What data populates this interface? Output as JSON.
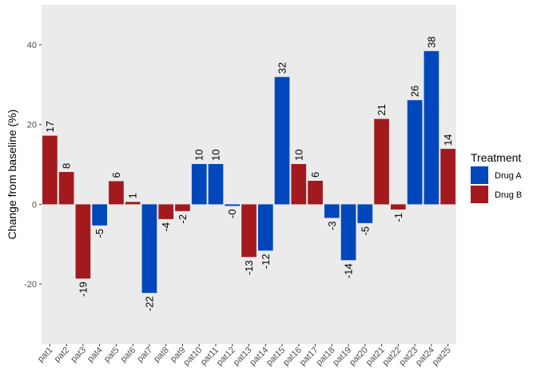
{
  "chart_data": {
    "type": "bar",
    "xlabel": "",
    "ylabel": "Change from baseline (%)",
    "ylim": [
      -35,
      50
    ],
    "yticks": [
      -20,
      0,
      20,
      40
    ],
    "categories": [
      "pat1",
      "pat2",
      "pat3",
      "pat4",
      "pat5",
      "pat6",
      "pat7",
      "pat8",
      "pat9",
      "pat10",
      "pat11",
      "pat12",
      "pat13",
      "pat14",
      "pat15",
      "pat16",
      "pat17",
      "pat18",
      "pat19",
      "pat20",
      "pat21",
      "pat22",
      "pat23",
      "pat24",
      "pat25"
    ],
    "values": [
      17.2,
      8.1,
      -18.6,
      -5.3,
      5.8,
      0.6,
      -22.2,
      -3.7,
      -1.7,
      10.1,
      10.1,
      -0.4,
      -13.2,
      -11.6,
      31.9,
      10.1,
      5.9,
      -3.4,
      -14.0,
      -4.7,
      21.4,
      -1.3,
      26.1,
      38.4,
      13.9
    ],
    "labels": [
      "17",
      "8",
      "-19",
      "-5",
      "6",
      "1",
      "-22",
      "-4",
      "-2",
      "10",
      "10",
      "-0",
      "-13",
      "-12",
      "32",
      "10",
      "6",
      "-3",
      "-14",
      "-5",
      "21",
      "-1",
      "26",
      "38",
      "14"
    ],
    "groups": [
      "Drug B",
      "Drug B",
      "Drug B",
      "Drug A",
      "Drug B",
      "Drug B",
      "Drug A",
      "Drug B",
      "Drug B",
      "Drug A",
      "Drug A",
      "Drug A",
      "Drug B",
      "Drug A",
      "Drug A",
      "Drug B",
      "Drug B",
      "Drug A",
      "Drug A",
      "Drug A",
      "Drug B",
      "Drug B",
      "Drug A",
      "Drug A",
      "Drug B"
    ],
    "legend": {
      "title": "Treatment",
      "position": "right",
      "entries": [
        {
          "name": "Drug A",
          "color": "#0047BB"
        },
        {
          "name": "Drug B",
          "color": "#A31A1E"
        }
      ]
    },
    "panel_background": "#EBEBEB",
    "grid": false
  }
}
